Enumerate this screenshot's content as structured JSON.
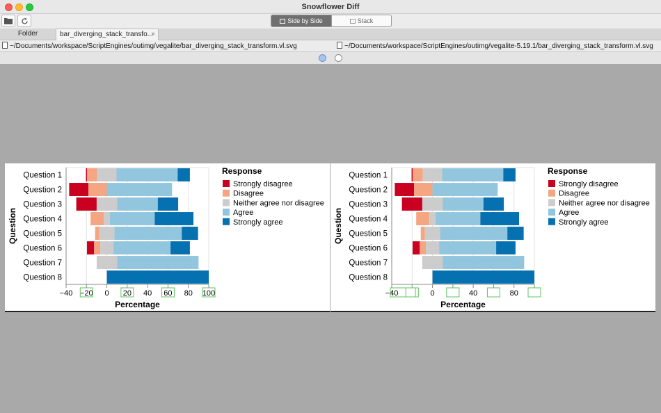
{
  "window": {
    "title": "Snowflower Diff"
  },
  "toolbar": {
    "open_icon": "folder-icon",
    "refresh_icon": "refresh-icon",
    "side_by_side_label": "Side by Side",
    "stack_label": "Stack"
  },
  "tabs": [
    {
      "label": "Folder"
    },
    {
      "label": "bar_diverging_stack_transfo..."
    }
  ],
  "paths": {
    "left": "~/Documents/workspace/ScriptEngines/outimg/vegalite/bar_diverging_stack_transform.vl.svg",
    "right": "~/Documents/workspace/ScriptEngines/outimg/vegalite-5.19.1/bar_diverging_stack_transform.vl.svg"
  },
  "colors": {
    "Strongly disagree": "#ca0020",
    "Disagree": "#f4a582",
    "Neither agree nor disagree": "#cccccc",
    "Agree": "#92c5de",
    "Strongly agree": "#0571b0"
  },
  "chart_data": [
    {
      "type": "bar",
      "orientation": "horizontal-diverging-stacked",
      "ylabel": "Question",
      "xlabel": "Percentage",
      "legend_title": "Response",
      "legend_position": "right",
      "xlim": [
        -40,
        100
      ],
      "ticks": [
        "−40",
        "−20",
        "0",
        "20",
        "40",
        "60",
        "80",
        "100"
      ],
      "tick_values": [
        -40,
        -20,
        0,
        20,
        40,
        60,
        80,
        100
      ],
      "categories": [
        "Question 1",
        "Question 2",
        "Question 3",
        "Question 4",
        "Question 5",
        "Question 6",
        "Question 7",
        "Question 8"
      ],
      "series": [
        {
          "name": "Strongly disagree",
          "values": [
            1,
            19,
            20,
            0,
            0,
            7,
            0,
            0
          ]
        },
        {
          "name": "Disagree",
          "values": [
            10,
            18,
            0,
            13,
            4,
            6,
            0,
            0
          ]
        },
        {
          "name": "Neither agree nor disagree",
          "values": [
            19,
            0,
            20,
            6,
            15,
            13,
            20,
            0
          ]
        },
        {
          "name": "Agree",
          "values": [
            60,
            64,
            40,
            44,
            66,
            56,
            80,
            0
          ]
        },
        {
          "name": "Strongly agree",
          "values": [
            12,
            0,
            20,
            38,
            16,
            19,
            0,
            100
          ]
        }
      ]
    },
    {
      "type": "bar",
      "orientation": "horizontal-diverging-stacked",
      "ylabel": "Question",
      "xlabel": "Percentage",
      "legend_title": "Response",
      "legend_position": "right",
      "xlim": [
        -40,
        100
      ],
      "ticks": [
        "−40",
        "",
        "0",
        "",
        "40",
        "",
        "80",
        ""
      ],
      "tick_values": [
        -40,
        -20,
        0,
        20,
        40,
        60,
        80,
        100
      ],
      "categories": [
        "Question 1",
        "Question 2",
        "Question 3",
        "Question 4",
        "Question 5",
        "Question 6",
        "Question 7",
        "Question 8"
      ],
      "series": [
        {
          "name": "Strongly disagree",
          "values": [
            1,
            19,
            20,
            0,
            0,
            7,
            0,
            0
          ]
        },
        {
          "name": "Disagree",
          "values": [
            10,
            18,
            0,
            13,
            4,
            6,
            0,
            0
          ]
        },
        {
          "name": "Neither agree nor disagree",
          "values": [
            19,
            0,
            20,
            6,
            15,
            13,
            20,
            0
          ]
        },
        {
          "name": "Agree",
          "values": [
            60,
            64,
            40,
            44,
            66,
            56,
            80,
            0
          ]
        },
        {
          "name": "Strongly agree",
          "values": [
            12,
            0,
            20,
            38,
            16,
            19,
            0,
            100
          ]
        }
      ]
    }
  ]
}
